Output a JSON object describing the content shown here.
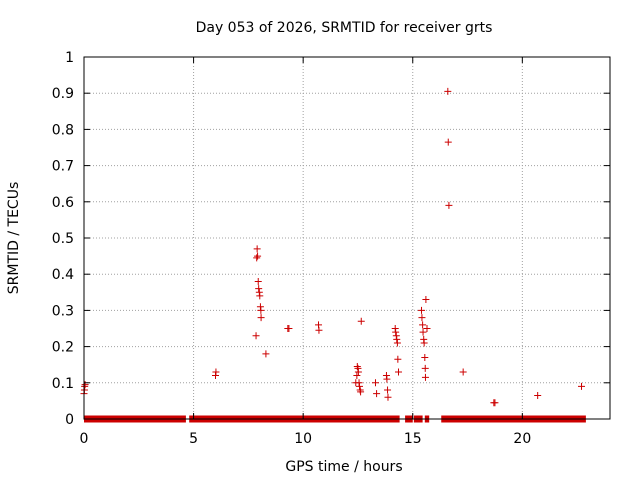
{
  "chart_data": {
    "type": "scatter",
    "title": "Day 053 of 2026, SRMTID for receiver grts",
    "xlabel": "GPS time / hours",
    "ylabel": "SRMTID / TECUs",
    "xlim": [
      0,
      24.0
    ],
    "ylim": [
      0,
      1
    ],
    "x_ticks": [
      0,
      5,
      10,
      15,
      20
    ],
    "x_tick_labels": [
      "0",
      "5",
      "10",
      "15",
      "20"
    ],
    "y_ticks": [
      0,
      0.1,
      0.2,
      0.3,
      0.4,
      0.5,
      0.6,
      0.7,
      0.8,
      0.9,
      1
    ],
    "y_tick_labels": [
      "0",
      "0.1",
      "0.2",
      "0.3",
      "0.4",
      "0.5",
      "0.6",
      "0.7",
      "0.8",
      "0.9",
      "1"
    ],
    "grid": true,
    "marker": "+",
    "marker_color": "#cc0000",
    "zero_ranges": [
      [
        0.0,
        4.65
      ],
      [
        4.8,
        14.4
      ],
      [
        14.65,
        15.0
      ],
      [
        15.05,
        15.45
      ],
      [
        15.55,
        15.75
      ],
      [
        16.3,
        22.9
      ]
    ],
    "points": [
      [
        0.0,
        0.07
      ],
      [
        0.02,
        0.08
      ],
      [
        0.03,
        0.09
      ],
      [
        0.05,
        0.095
      ],
      [
        6.0,
        0.12
      ],
      [
        6.02,
        0.13
      ],
      [
        7.85,
        0.23
      ],
      [
        7.88,
        0.445
      ],
      [
        7.9,
        0.47
      ],
      [
        7.92,
        0.45
      ],
      [
        7.95,
        0.38
      ],
      [
        7.97,
        0.36
      ],
      [
        8.0,
        0.35
      ],
      [
        8.02,
        0.34
      ],
      [
        8.05,
        0.31
      ],
      [
        8.07,
        0.3
      ],
      [
        8.08,
        0.28
      ],
      [
        8.3,
        0.18
      ],
      [
        9.3,
        0.25
      ],
      [
        9.35,
        0.25
      ],
      [
        10.7,
        0.26
      ],
      [
        10.72,
        0.245
      ],
      [
        12.4,
        0.1
      ],
      [
        12.45,
        0.12
      ],
      [
        12.47,
        0.145
      ],
      [
        12.5,
        0.14
      ],
      [
        12.52,
        0.13
      ],
      [
        12.55,
        0.1
      ],
      [
        12.57,
        0.09
      ],
      [
        12.6,
        0.08
      ],
      [
        12.62,
        0.075
      ],
      [
        12.65,
        0.27
      ],
      [
        13.3,
        0.1
      ],
      [
        13.35,
        0.07
      ],
      [
        13.8,
        0.12
      ],
      [
        13.82,
        0.11
      ],
      [
        13.85,
        0.08
      ],
      [
        13.87,
        0.06
      ],
      [
        14.2,
        0.25
      ],
      [
        14.22,
        0.24
      ],
      [
        14.25,
        0.23
      ],
      [
        14.27,
        0.22
      ],
      [
        14.3,
        0.21
      ],
      [
        14.32,
        0.165
      ],
      [
        14.35,
        0.13
      ],
      [
        15.4,
        0.3
      ],
      [
        15.42,
        0.28
      ],
      [
        15.45,
        0.26
      ],
      [
        15.47,
        0.24
      ],
      [
        15.5,
        0.22
      ],
      [
        15.52,
        0.21
      ],
      [
        15.55,
        0.17
      ],
      [
        15.57,
        0.14
      ],
      [
        15.58,
        0.115
      ],
      [
        15.6,
        0.33
      ],
      [
        15.65,
        0.25
      ],
      [
        16.6,
        0.905
      ],
      [
        16.62,
        0.765
      ],
      [
        16.65,
        0.59
      ],
      [
        17.3,
        0.13
      ],
      [
        18.7,
        0.045
      ],
      [
        18.75,
        0.045
      ],
      [
        20.7,
        0.065
      ],
      [
        22.7,
        0.09
      ]
    ]
  }
}
